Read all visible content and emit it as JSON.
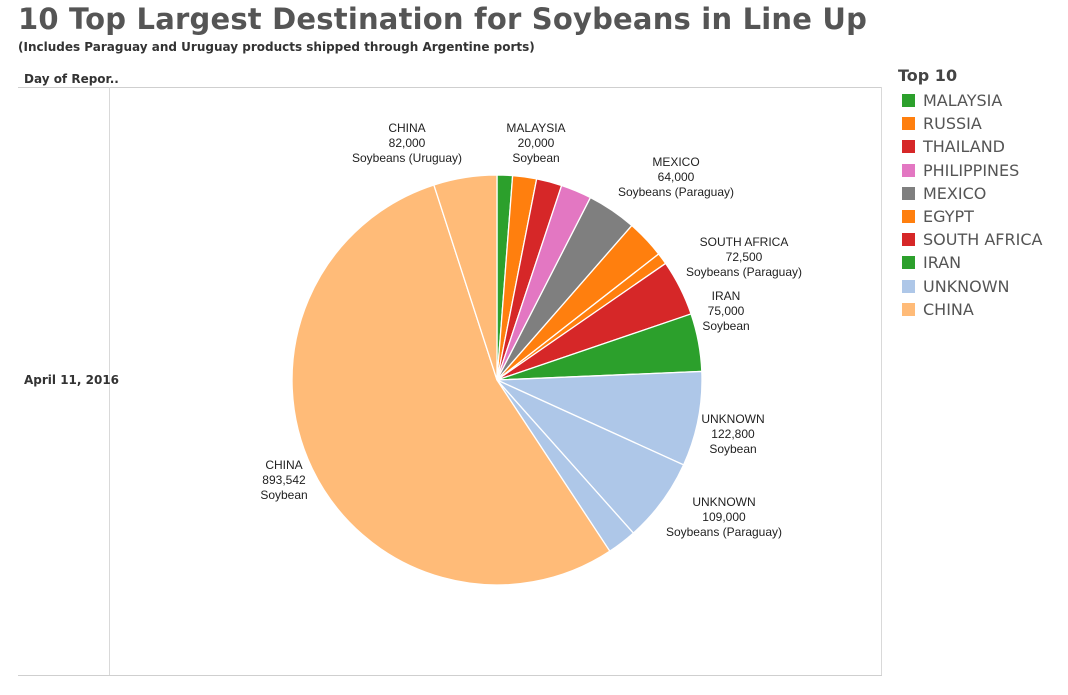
{
  "title": "10 Top Largest Destination for Soybeans in Line Up",
  "subtitle": "(Includes Paraguay and Uruguay products shipped through Argentine ports)",
  "row_header": "Day of Repor..",
  "row_label": "April 11, 2016",
  "legend": {
    "title": "Top 10",
    "items": [
      {
        "label": "MALAYSIA",
        "color": "#2ca02c"
      },
      {
        "label": "RUSSIA",
        "color": "#ff7f0e"
      },
      {
        "label": "THAILAND",
        "color": "#d62728"
      },
      {
        "label": "PHILIPPINES",
        "color": "#e377c2"
      },
      {
        "label": "MEXICO",
        "color": "#7f7f7f"
      },
      {
        "label": "EGYPT",
        "color": "#ff7f0e"
      },
      {
        "label": "SOUTH AFRICA",
        "color": "#d62728"
      },
      {
        "label": "IRAN",
        "color": "#2ca02c"
      },
      {
        "label": "UNKNOWN",
        "color": "#aec7e8"
      },
      {
        "label": "CHINA",
        "color": "#ffbb78"
      }
    ]
  },
  "chart_data": {
    "type": "pie",
    "start_angle_deg": 0,
    "direction": "clockwise",
    "slices": [
      {
        "name": "MALAYSIA",
        "product": "Soybean",
        "value": 20000,
        "color": "#2ca02c",
        "labeled": true
      },
      {
        "name": "RUSSIA",
        "product": "",
        "value": 31000,
        "color": "#ff7f0e",
        "labeled": false
      },
      {
        "name": "THAILAND",
        "product": "",
        "value": 33000,
        "color": "#d62728",
        "labeled": false
      },
      {
        "name": "PHILIPPINES",
        "product": "",
        "value": 40000,
        "color": "#e377c2",
        "labeled": false
      },
      {
        "name": "MEXICO",
        "product": "Soybeans (Paraguay)",
        "value": 64000,
        "color": "#7f7f7f",
        "labeled": true
      },
      {
        "name": "EGYPT",
        "product": "",
        "value": 50000,
        "color": "#ff7f0e",
        "labeled": false
      },
      {
        "name": "SOUTH AFRICA",
        "product": "",
        "value": 15000,
        "color": "#ff7f0e",
        "labeled": false
      },
      {
        "name": "SOUTH AFRICA",
        "product": "Soybeans (Paraguay)",
        "value": 72500,
        "color": "#d62728",
        "labeled": true
      },
      {
        "name": "IRAN",
        "product": "Soybean",
        "value": 75000,
        "color": "#2ca02c",
        "labeled": true
      },
      {
        "name": "UNKNOWN",
        "product": "Soybean",
        "value": 122800,
        "color": "#aec7e8",
        "labeled": true
      },
      {
        "name": "UNKNOWN",
        "product": "Soybeans (Paraguay)",
        "value": 109000,
        "color": "#aec7e8",
        "labeled": true
      },
      {
        "name": "UNKNOWN",
        "product": "",
        "value": 38000,
        "color": "#aec7e8",
        "labeled": false
      },
      {
        "name": "CHINA",
        "product": "Soybean",
        "value": 893542,
        "color": "#ffbb78",
        "labeled": true
      },
      {
        "name": "CHINA",
        "product": "Soybeans (Uruguay)",
        "value": 82000,
        "color": "#ffbb78",
        "labeled": true
      }
    ]
  }
}
